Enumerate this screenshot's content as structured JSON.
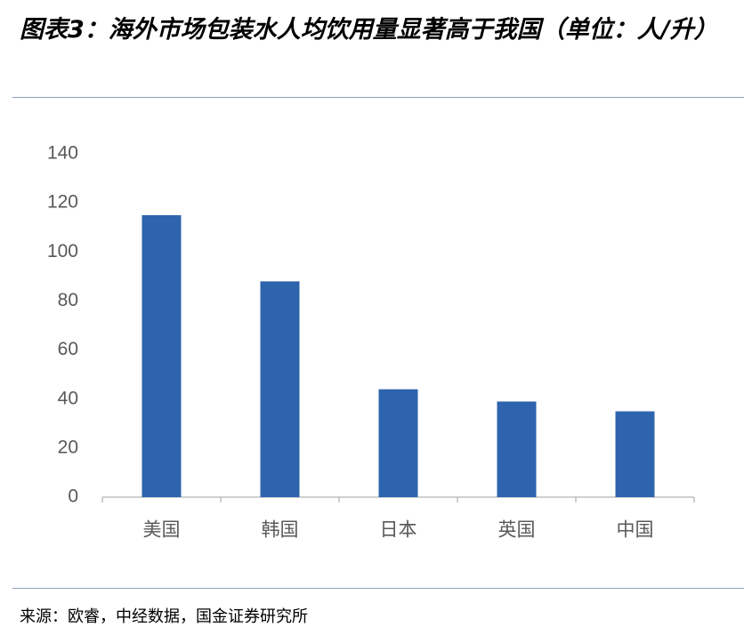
{
  "chart_data": {
    "type": "bar",
    "title": "图表3：海外市场包装水人均饮用量显著高于我国（单位：人/升）",
    "categories": [
      "美国",
      "韩国",
      "日本",
      "英国",
      "中国"
    ],
    "values": [
      115,
      88,
      44,
      39,
      35
    ],
    "color": "#2e64ae",
    "ylim": [
      0,
      140
    ],
    "yticks": [
      0,
      20,
      40,
      60,
      80,
      100,
      120,
      140
    ],
    "grid": false,
    "source": "来源：欧睿，中经数据，国金证券研究所"
  }
}
